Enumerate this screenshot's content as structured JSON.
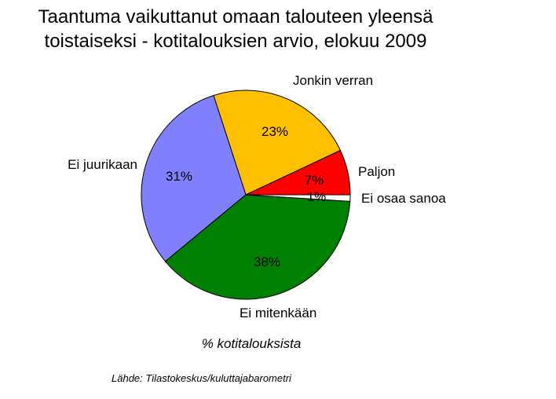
{
  "title": {
    "line1": "Taantuma vaikuttanut omaan talouteen yleensä",
    "line2": "toistaiseksi - kotitalouksien arvio, elokuu 2009"
  },
  "xlabel": "% kotitalouksista",
  "source": "Lähde: Tilastokeskus/kuluttajabarometri",
  "chart_data": {
    "type": "pie",
    "title": "Taantuma vaikuttanut omaan talouteen yleensä toistaiseksi - kotitalouksien arvio, elokuu 2009",
    "xlabel": "% kotitalouksista",
    "slices": [
      {
        "label": "Paljon",
        "value": 7,
        "value_label": "7%",
        "color": "#ff0000"
      },
      {
        "label": "Jonkin verran",
        "value": 23,
        "value_label": "23%",
        "color": "#ffc000"
      },
      {
        "label": "Ei juurikaan",
        "value": 31,
        "value_label": "31%",
        "color": "#8080ff"
      },
      {
        "label": "Ei mitenkään",
        "value": 38,
        "value_label": "38%",
        "color": "#008000"
      },
      {
        "label": "Ei osaa sanoa",
        "value": 1,
        "value_label": "1%",
        "color": "#ffffff"
      }
    ]
  }
}
